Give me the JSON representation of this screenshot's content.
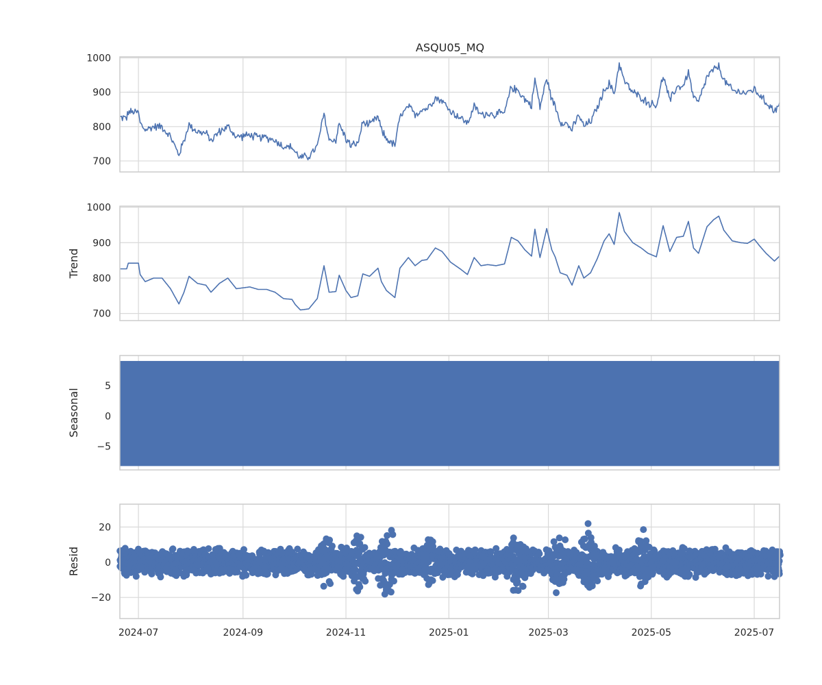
{
  "chart_data": {
    "type": "line",
    "title": "ASQU05_MQ",
    "x_tick_labels": [
      "2024-07",
      "2024-09",
      "2024-11",
      "2025-01",
      "2025-03",
      "2025-05",
      "2025-07"
    ],
    "x_range": [
      "2024-06-20",
      "2025-07-16"
    ],
    "grid": true,
    "colors": {
      "series": "#4c72b0",
      "grid": "#d9d9d9",
      "frame": "#cccccc"
    },
    "panels": [
      {
        "name": "observed",
        "ylabel": "",
        "kind": "line",
        "ylim": [
          668,
          1003
        ],
        "yticks": [
          700,
          800,
          900,
          1000
        ],
        "ytick_labels": [
          "700",
          "800",
          "900",
          "1000"
        ],
        "noise": 12,
        "series": [
          [
            "2024-06-20",
            826
          ],
          [
            "2024-06-24",
            826
          ],
          [
            "2024-06-25",
            842
          ],
          [
            "2024-07-01",
            842
          ],
          [
            "2024-07-02",
            810
          ],
          [
            "2024-07-05",
            790
          ],
          [
            "2024-07-10",
            800
          ],
          [
            "2024-07-15",
            800
          ],
          [
            "2024-07-20",
            770
          ],
          [
            "2024-07-25",
            718
          ],
          [
            "2024-07-28",
            760
          ],
          [
            "2024-07-31",
            805
          ],
          [
            "2024-08-05",
            785
          ],
          [
            "2024-08-10",
            780
          ],
          [
            "2024-08-13",
            760
          ],
          [
            "2024-08-18",
            785
          ],
          [
            "2024-08-23",
            800
          ],
          [
            "2024-08-28",
            770
          ],
          [
            "2024-09-05",
            775
          ],
          [
            "2024-09-10",
            768
          ],
          [
            "2024-09-15",
            768
          ],
          [
            "2024-09-20",
            760
          ],
          [
            "2024-09-25",
            742
          ],
          [
            "2024-09-30",
            740
          ],
          [
            "2024-10-02",
            725
          ],
          [
            "2024-10-05",
            710
          ],
          [
            "2024-10-10",
            713
          ],
          [
            "2024-10-15",
            742
          ],
          [
            "2024-10-19",
            838
          ],
          [
            "2024-10-22",
            760
          ],
          [
            "2024-10-26",
            762
          ],
          [
            "2024-10-28",
            808
          ],
          [
            "2024-11-01",
            765
          ],
          [
            "2024-11-04",
            745
          ],
          [
            "2024-11-08",
            750
          ],
          [
            "2024-11-11",
            812
          ],
          [
            "2024-11-15",
            805
          ],
          [
            "2024-11-20",
            828
          ],
          [
            "2024-11-22",
            790
          ],
          [
            "2024-11-25",
            765
          ],
          [
            "2024-11-30",
            745
          ],
          [
            "2024-12-03",
            828
          ],
          [
            "2024-12-08",
            858
          ],
          [
            "2024-12-12",
            835
          ],
          [
            "2024-12-16",
            850
          ],
          [
            "2024-12-19",
            852
          ],
          [
            "2024-12-24",
            885
          ],
          [
            "2024-12-28",
            875
          ],
          [
            "2025-01-02",
            845
          ],
          [
            "2025-01-08",
            825
          ],
          [
            "2025-01-12",
            810
          ],
          [
            "2025-01-16",
            858
          ],
          [
            "2025-01-20",
            835
          ],
          [
            "2025-01-24",
            838
          ],
          [
            "2025-01-29",
            835
          ],
          [
            "2025-02-03",
            840
          ],
          [
            "2025-02-07",
            915
          ],
          [
            "2025-02-11",
            905
          ],
          [
            "2025-02-15",
            880
          ],
          [
            "2025-02-19",
            862
          ],
          [
            "2025-02-21",
            938
          ],
          [
            "2025-02-24",
            858
          ],
          [
            "2025-02-28",
            940
          ],
          [
            "2025-03-03",
            880
          ],
          [
            "2025-03-05",
            860
          ],
          [
            "2025-03-08",
            815
          ],
          [
            "2025-03-12",
            808
          ],
          [
            "2025-03-15",
            790
          ],
          [
            "2025-03-19",
            835
          ],
          [
            "2025-03-22",
            800
          ],
          [
            "2025-03-26",
            815
          ],
          [
            "2025-03-30",
            855
          ],
          [
            "2025-04-03",
            905
          ],
          [
            "2025-04-06",
            925
          ],
          [
            "2025-04-09",
            895
          ],
          [
            "2025-04-12",
            985
          ],
          [
            "2025-04-15",
            932
          ],
          [
            "2025-04-20",
            900
          ],
          [
            "2025-04-25",
            885
          ],
          [
            "2025-04-29",
            870
          ],
          [
            "2025-05-04",
            860
          ],
          [
            "2025-05-08",
            948
          ],
          [
            "2025-05-12",
            875
          ],
          [
            "2025-05-16",
            915
          ],
          [
            "2025-05-20",
            918
          ],
          [
            "2025-05-23",
            960
          ],
          [
            "2025-05-26",
            885
          ],
          [
            "2025-05-29",
            870
          ],
          [
            "2025-06-03",
            945
          ],
          [
            "2025-06-07",
            965
          ],
          [
            "2025-06-10",
            975
          ],
          [
            "2025-06-13",
            935
          ],
          [
            "2025-06-18",
            905
          ],
          [
            "2025-06-23",
            900
          ],
          [
            "2025-06-27",
            898
          ],
          [
            "2025-07-01",
            910
          ],
          [
            "2025-07-04",
            892
          ],
          [
            "2025-07-08",
            870
          ],
          [
            "2025-07-13",
            848
          ],
          [
            "2025-07-16",
            862
          ]
        ]
      },
      {
        "name": "trend",
        "ylabel": "Trend",
        "kind": "line",
        "ylim": [
          680,
          1003
        ],
        "yticks": [
          700,
          800,
          900,
          1000
        ],
        "ytick_labels": [
          "700",
          "800",
          "900",
          "1000"
        ],
        "noise": 0,
        "series": [
          [
            "2024-06-20",
            826
          ],
          [
            "2024-06-24",
            826
          ],
          [
            "2024-06-25",
            842
          ],
          [
            "2024-07-01",
            842
          ],
          [
            "2024-07-02",
            810
          ],
          [
            "2024-07-05",
            790
          ],
          [
            "2024-07-10",
            800
          ],
          [
            "2024-07-15",
            800
          ],
          [
            "2024-07-20",
            770
          ],
          [
            "2024-07-25",
            727
          ],
          [
            "2024-07-28",
            760
          ],
          [
            "2024-07-31",
            805
          ],
          [
            "2024-08-05",
            785
          ],
          [
            "2024-08-10",
            780
          ],
          [
            "2024-08-13",
            760
          ],
          [
            "2024-08-18",
            785
          ],
          [
            "2024-08-23",
            800
          ],
          [
            "2024-08-28",
            770
          ],
          [
            "2024-09-05",
            775
          ],
          [
            "2024-09-10",
            768
          ],
          [
            "2024-09-15",
            768
          ],
          [
            "2024-09-20",
            760
          ],
          [
            "2024-09-25",
            742
          ],
          [
            "2024-09-30",
            740
          ],
          [
            "2024-10-02",
            725
          ],
          [
            "2024-10-05",
            710
          ],
          [
            "2024-10-10",
            713
          ],
          [
            "2024-10-15",
            742
          ],
          [
            "2024-10-19",
            835
          ],
          [
            "2024-10-22",
            760
          ],
          [
            "2024-10-26",
            762
          ],
          [
            "2024-10-28",
            808
          ],
          [
            "2024-11-01",
            765
          ],
          [
            "2024-11-04",
            745
          ],
          [
            "2024-11-08",
            750
          ],
          [
            "2024-11-11",
            812
          ],
          [
            "2024-11-15",
            805
          ],
          [
            "2024-11-20",
            828
          ],
          [
            "2024-11-22",
            790
          ],
          [
            "2024-11-25",
            765
          ],
          [
            "2024-11-30",
            745
          ],
          [
            "2024-12-03",
            828
          ],
          [
            "2024-12-08",
            858
          ],
          [
            "2024-12-12",
            835
          ],
          [
            "2024-12-16",
            850
          ],
          [
            "2024-12-19",
            852
          ],
          [
            "2024-12-24",
            885
          ],
          [
            "2024-12-28",
            875
          ],
          [
            "2025-01-02",
            845
          ],
          [
            "2025-01-08",
            825
          ],
          [
            "2025-01-12",
            810
          ],
          [
            "2025-01-16",
            858
          ],
          [
            "2025-01-20",
            835
          ],
          [
            "2025-01-24",
            838
          ],
          [
            "2025-01-29",
            835
          ],
          [
            "2025-02-03",
            840
          ],
          [
            "2025-02-07",
            915
          ],
          [
            "2025-02-11",
            905
          ],
          [
            "2025-02-15",
            880
          ],
          [
            "2025-02-19",
            862
          ],
          [
            "2025-02-21",
            938
          ],
          [
            "2025-02-24",
            858
          ],
          [
            "2025-02-28",
            940
          ],
          [
            "2025-03-03",
            880
          ],
          [
            "2025-03-05",
            860
          ],
          [
            "2025-03-08",
            815
          ],
          [
            "2025-03-12",
            808
          ],
          [
            "2025-03-15",
            780
          ],
          [
            "2025-03-19",
            835
          ],
          [
            "2025-03-22",
            800
          ],
          [
            "2025-03-26",
            815
          ],
          [
            "2025-03-30",
            855
          ],
          [
            "2025-04-03",
            905
          ],
          [
            "2025-04-06",
            925
          ],
          [
            "2025-04-09",
            895
          ],
          [
            "2025-04-12",
            985
          ],
          [
            "2025-04-15",
            932
          ],
          [
            "2025-04-20",
            900
          ],
          [
            "2025-04-25",
            885
          ],
          [
            "2025-04-29",
            870
          ],
          [
            "2025-05-04",
            860
          ],
          [
            "2025-05-08",
            948
          ],
          [
            "2025-05-12",
            875
          ],
          [
            "2025-05-16",
            915
          ],
          [
            "2025-05-20",
            918
          ],
          [
            "2025-05-23",
            960
          ],
          [
            "2025-05-26",
            885
          ],
          [
            "2025-05-29",
            870
          ],
          [
            "2025-06-03",
            945
          ],
          [
            "2025-06-07",
            965
          ],
          [
            "2025-06-10",
            975
          ],
          [
            "2025-06-13",
            935
          ],
          [
            "2025-06-18",
            905
          ],
          [
            "2025-06-23",
            900
          ],
          [
            "2025-06-27",
            898
          ],
          [
            "2025-07-01",
            910
          ],
          [
            "2025-07-04",
            892
          ],
          [
            "2025-07-08",
            870
          ],
          [
            "2025-07-13",
            848
          ],
          [
            "2025-07-16",
            862
          ]
        ]
      },
      {
        "name": "seasonal",
        "ylabel": "Seasonal",
        "kind": "band",
        "ylim": [
          -8.9,
          10.0
        ],
        "yticks": [
          5,
          0,
          -5
        ],
        "ytick_labels": [
          "5",
          "0",
          "−5"
        ],
        "range": [
          -8.2,
          9.1
        ]
      },
      {
        "name": "resid",
        "ylabel": "Resid",
        "kind": "scatter",
        "ylim": [
          -32,
          33
        ],
        "yticks": [
          20,
          0,
          -20
        ],
        "ytick_labels": [
          "20",
          "0",
          "−20"
        ],
        "base_amplitude": 9,
        "bursts": [
          [
            "2024-10-20",
            22
          ],
          [
            "2024-11-08",
            25
          ],
          [
            "2024-11-25",
            28
          ],
          [
            "2024-12-20",
            20
          ],
          [
            "2025-02-10",
            28
          ],
          [
            "2025-03-08",
            30
          ],
          [
            "2025-03-25",
            28
          ],
          [
            "2025-04-25",
            23
          ]
        ]
      }
    ]
  }
}
